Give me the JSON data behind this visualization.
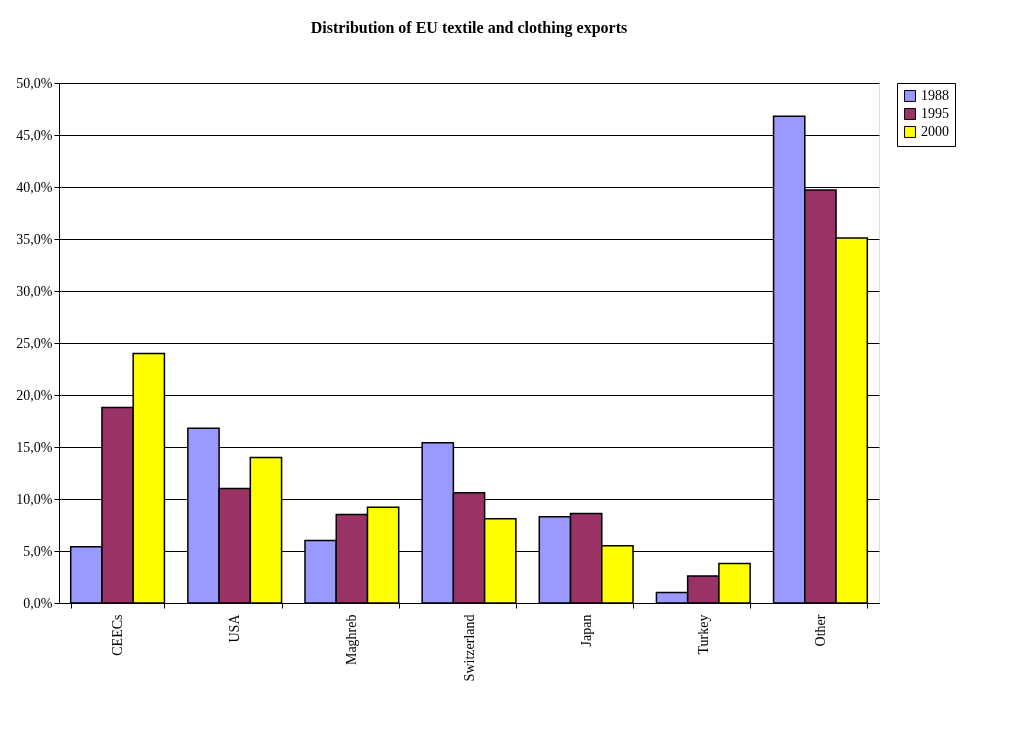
{
  "chart_data": {
    "type": "bar",
    "title": "Distribution of EU textile and clothing exports",
    "categories": [
      "CEECs",
      "USA",
      "Maghreb",
      "Switzerland",
      "Japan",
      "Turkey",
      "Other"
    ],
    "series": [
      {
        "name": "1988",
        "color": "#9999ff",
        "values": [
          5.4,
          16.8,
          6.0,
          15.4,
          8.3,
          1.0,
          46.8
        ]
      },
      {
        "name": "1995",
        "color": "#993366",
        "values": [
          18.8,
          11.0,
          8.5,
          10.6,
          8.6,
          2.6,
          39.7
        ]
      },
      {
        "name": "2000",
        "color": "#ffff00",
        "values": [
          24.0,
          14.0,
          9.2,
          8.1,
          5.5,
          3.8,
          35.1
        ]
      }
    ],
    "ylim": [
      0,
      50
    ],
    "yticks": [
      {
        "value": 0,
        "label": "0,0%"
      },
      {
        "value": 5,
        "label": "5,0%"
      },
      {
        "value": 10,
        "label": "10,0%"
      },
      {
        "value": 15,
        "label": "15,0%"
      },
      {
        "value": 20,
        "label": "20,0%"
      },
      {
        "value": 25,
        "label": "25,0%"
      },
      {
        "value": 30,
        "label": "30,0%"
      },
      {
        "value": 35,
        "label": "35,0%"
      },
      {
        "value": 40,
        "label": "40,0%"
      },
      {
        "value": 45,
        "label": "45,0%"
      },
      {
        "value": 50,
        "label": "50,0%"
      }
    ],
    "grid": "y",
    "legend": "right"
  }
}
